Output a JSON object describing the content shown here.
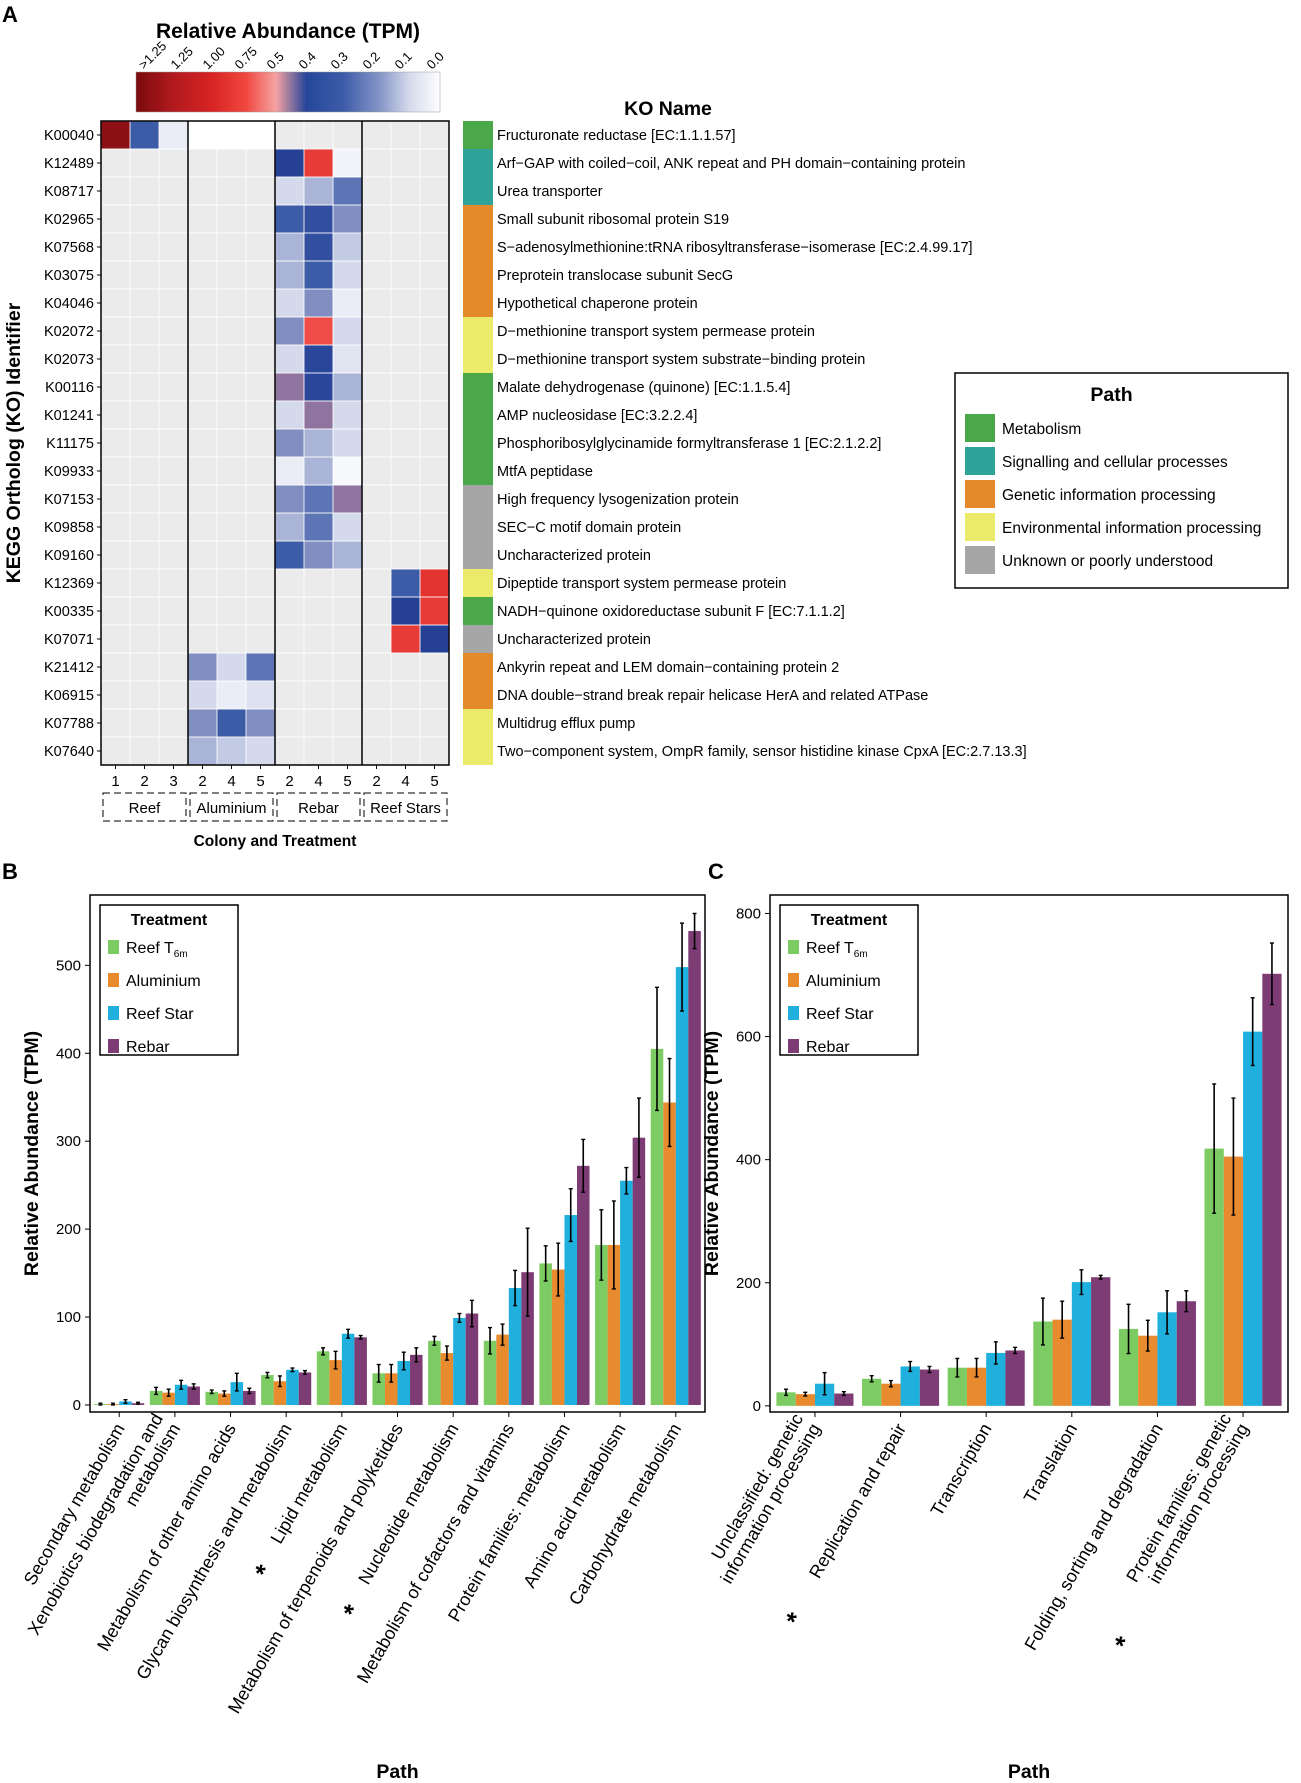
{
  "panels": {
    "a": "A",
    "b": "B",
    "c": "C"
  },
  "chart_data": [
    {
      "type": "heatmap",
      "panel": "A",
      "colorbar": {
        "title": "Relative Abundance (TPM)",
        "ticks": [
          ">1.25",
          "1.25",
          "1.00",
          "0.75",
          "0.5",
          "0.4",
          "0.3",
          "0.2",
          "0.1",
          "0.0"
        ],
        "tick_values": [
          1.4,
          1.25,
          1.0,
          0.75,
          0.5,
          0.4,
          0.3,
          0.2,
          0.1,
          0.0
        ]
      },
      "ylabel": "KEGG Ortholog (KO) Identifier",
      "xlabel": "Colony and Treatment",
      "ko_name_header": "KO Name",
      "groups": [
        {
          "label": "Reef",
          "columns": [
            "1",
            "2",
            "3"
          ]
        },
        {
          "label": "Aluminium",
          "columns": [
            "2",
            "4",
            "5"
          ]
        },
        {
          "label": "Rebar",
          "columns": [
            "2",
            "4",
            "5"
          ]
        },
        {
          "label": "Reef Stars",
          "columns": [
            "2",
            "4",
            "5"
          ]
        }
      ],
      "rows": [
        {
          "id": "K00040",
          "name": "Fructuronate reductase [EC:1.1.1.57]",
          "path": "Metabolism",
          "values": [
            1.4,
            0.3,
            0.05,
            0,
            0,
            0,
            null,
            null,
            null,
            null,
            null,
            null
          ]
        },
        {
          "id": "K12489",
          "name": "Arf−GAP with coiled−coil, ANK repeat and PH domain−containing protein",
          "path": "Signalling and cellular processes",
          "values": [
            null,
            null,
            null,
            null,
            null,
            null,
            0.4,
            0.85,
            0.03,
            null,
            null,
            null
          ]
        },
        {
          "id": "K08717",
          "name": "Urea transporter",
          "path": "Signalling and cellular processes",
          "values": [
            null,
            null,
            null,
            null,
            null,
            null,
            0.1,
            0.15,
            0.25,
            null,
            null,
            null
          ]
        },
        {
          "id": "K02965",
          "name": "Small subunit ribosomal protein S19",
          "path": "Genetic information processing",
          "values": [
            null,
            null,
            null,
            null,
            null,
            null,
            0.3,
            0.35,
            0.2,
            null,
            null,
            null
          ]
        },
        {
          "id": "K07568",
          "name": "S−adenosylmethionine:tRNA ribosyltransferase−isomerase [EC:2.4.99.17]",
          "path": "Genetic information processing",
          "values": [
            null,
            null,
            null,
            null,
            null,
            null,
            0.15,
            0.35,
            0.12,
            null,
            null,
            null
          ]
        },
        {
          "id": "K03075",
          "name": "Preprotein translocase subunit SecG",
          "path": "Genetic information processing",
          "values": [
            null,
            null,
            null,
            null,
            null,
            null,
            0.15,
            0.3,
            0.1,
            null,
            null,
            null
          ]
        },
        {
          "id": "K04046",
          "name": "Hypothetical chaperone protein",
          "path": "Genetic information processing",
          "values": [
            null,
            null,
            null,
            null,
            null,
            null,
            0.1,
            0.2,
            0.05,
            null,
            null,
            null
          ]
        },
        {
          "id": "K02072",
          "name": "D−methionine transport system permease protein",
          "path": "Environmental information processing",
          "values": [
            null,
            null,
            null,
            null,
            null,
            null,
            0.2,
            0.75,
            0.1,
            null,
            null,
            null
          ]
        },
        {
          "id": "K02073",
          "name": "D−methionine transport system substrate−binding protein",
          "path": "Environmental information processing",
          "values": [
            null,
            null,
            null,
            null,
            null,
            null,
            0.1,
            0.38,
            0.07,
            null,
            null,
            null
          ]
        },
        {
          "id": "K00116",
          "name": "Malate dehydrogenase (quinone) [EC:1.1.5.4]",
          "path": "Metabolism",
          "values": [
            null,
            null,
            null,
            null,
            null,
            null,
            0.45,
            0.38,
            0.15,
            null,
            null,
            null
          ]
        },
        {
          "id": "K01241",
          "name": "AMP nucleosidase [EC:3.2.2.4]",
          "path": "Metabolism",
          "values": [
            null,
            null,
            null,
            null,
            null,
            null,
            0.1,
            0.45,
            0.1,
            null,
            null,
            null
          ]
        },
        {
          "id": "K11175",
          "name": "Phosphoribosylglycinamide formyltransferase 1 [EC:2.1.2.2]",
          "path": "Metabolism",
          "values": [
            null,
            null,
            null,
            null,
            null,
            null,
            0.2,
            0.15,
            0.1,
            null,
            null,
            null
          ]
        },
        {
          "id": "K09933",
          "name": "MtfA peptidase",
          "path": "Metabolism",
          "values": [
            null,
            null,
            null,
            null,
            null,
            null,
            0.05,
            0.15,
            0.02,
            null,
            null,
            null
          ]
        },
        {
          "id": "K07153",
          "name": "High frequency lysogenization protein",
          "path": "Unknown or poorly understood",
          "values": [
            null,
            null,
            null,
            null,
            null,
            null,
            0.2,
            0.25,
            0.45,
            null,
            null,
            null
          ]
        },
        {
          "id": "K09858",
          "name": "SEC−C motif domain protein",
          "path": "Unknown or poorly understood",
          "values": [
            null,
            null,
            null,
            null,
            null,
            null,
            0.15,
            0.25,
            0.1,
            null,
            null,
            null
          ]
        },
        {
          "id": "K09160",
          "name": "Uncharacterized protein",
          "path": "Unknown or poorly understood",
          "values": [
            null,
            null,
            null,
            null,
            null,
            null,
            0.3,
            0.2,
            0.15,
            null,
            null,
            null
          ]
        },
        {
          "id": "K12369",
          "name": "Dipeptide transport system permease protein",
          "path": "Environmental information processing",
          "values": [
            null,
            null,
            null,
            null,
            null,
            null,
            null,
            null,
            null,
            null,
            0.3,
            0.9
          ]
        },
        {
          "id": "K00335",
          "name": "NADH−quinone oxidoreductase subunit F [EC:7.1.1.2]",
          "path": "Metabolism",
          "values": [
            null,
            null,
            null,
            null,
            null,
            null,
            null,
            null,
            null,
            null,
            0.4,
            0.85
          ]
        },
        {
          "id": "K07071",
          "name": "Uncharacterized protein",
          "path": "Unknown or poorly understood",
          "values": [
            null,
            null,
            null,
            null,
            null,
            null,
            null,
            null,
            null,
            null,
            0.85,
            0.4
          ]
        },
        {
          "id": "K21412",
          "name": "Ankyrin repeat and LEM domain−containing protein 2",
          "path": "Genetic information processing",
          "values": [
            null,
            null,
            null,
            0.2,
            0.1,
            0.25,
            null,
            null,
            null,
            null,
            null,
            null
          ]
        },
        {
          "id": "K06915",
          "name": "DNA double−strand break repair helicase HerA and related ATPase",
          "path": "Genetic information processing",
          "values": [
            null,
            null,
            null,
            0.1,
            0.05,
            0.08,
            null,
            null,
            null,
            null,
            null,
            null
          ]
        },
        {
          "id": "K07788",
          "name": "Multidrug efflux pump",
          "path": "Environmental information processing",
          "values": [
            null,
            null,
            null,
            0.2,
            0.3,
            0.2,
            null,
            null,
            null,
            null,
            null,
            null
          ]
        },
        {
          "id": "K07640",
          "name": "Two−component system, OmpR family, sensor histidine kinase CpxA [EC:2.7.13.3]",
          "path": "Environmental information processing",
          "values": [
            null,
            null,
            null,
            0.15,
            0.12,
            0.1,
            null,
            null,
            null,
            null,
            null,
            null
          ]
        }
      ],
      "legend": {
        "title": "Path",
        "items": [
          {
            "label": "Metabolism",
            "color": "#4aa84a"
          },
          {
            "label": "Signalling and cellular processes",
            "color": "#2fa399"
          },
          {
            "label": "Genetic information processing",
            "color": "#e58a2a"
          },
          {
            "label": "Environmental information processing",
            "color": "#ecea6a"
          },
          {
            "label": "Unknown or poorly understood",
            "color": "#a6a6a6"
          }
        ]
      }
    },
    {
      "type": "bar",
      "panel": "B",
      "xlabel": "Path",
      "ylabel": "Relative Abundance (TPM)",
      "ylim": [
        -8,
        580
      ],
      "yticks": [
        0,
        100,
        200,
        300,
        400,
        500
      ],
      "legend": {
        "title": "Treatment"
      },
      "categories": [
        {
          "label": "Secondary metabolism",
          "star": ""
        },
        {
          "label": "Xenobiotics biodegradation and\nmetabolism",
          "star": ""
        },
        {
          "label": "Metabolism of other amino acids",
          "star": ""
        },
        {
          "label": "Glycan biosynthesis and metabolism",
          "star": ""
        },
        {
          "label": "Lipid metabolism",
          "star": "*"
        },
        {
          "label": "Metabolism of terpenoids and polyketides",
          "star": ""
        },
        {
          "label": "Nucleotide metabolism",
          "star": "*"
        },
        {
          "label": "Metabolism of cofactors and vitamins",
          "star": ""
        },
        {
          "label": "Protein families: metabolism",
          "star": ""
        },
        {
          "label": "Amino acid metabolism",
          "star": ""
        },
        {
          "label": "Carbohydrate metabolism",
          "star": ""
        }
      ],
      "series": [
        {
          "name": "Reef T",
          "sub": "6m",
          "color": "#7ccc63",
          "values": [
            1,
            16,
            15,
            34,
            61,
            36,
            73,
            73,
            161,
            182,
            405
          ],
          "errors": [
            1,
            4,
            2,
            3,
            4,
            10,
            5,
            15,
            20,
            40,
            70
          ]
        },
        {
          "name": "Aluminium",
          "sub": "",
          "color": "#e88a2e",
          "values": [
            1,
            14,
            13,
            27,
            51,
            36,
            59,
            80,
            154,
            182,
            344
          ],
          "errors": [
            1,
            4,
            3,
            6,
            10,
            10,
            8,
            12,
            30,
            50,
            50
          ]
        },
        {
          "name": "Reef Star",
          "sub": "",
          "color": "#1fb0dd",
          "values": [
            4,
            23,
            26,
            40,
            81,
            50,
            99,
            133,
            216,
            255,
            498
          ],
          "errors": [
            2,
            5,
            10,
            2,
            5,
            10,
            5,
            20,
            30,
            15,
            50
          ]
        },
        {
          "name": "Rebar",
          "sub": "",
          "color": "#7d3c74",
          "values": [
            2,
            21,
            16,
            37,
            77,
            57,
            104,
            151,
            272,
            304,
            539
          ],
          "errors": [
            1,
            3,
            3,
            2,
            2,
            8,
            15,
            50,
            30,
            45,
            20
          ]
        }
      ]
    },
    {
      "type": "bar",
      "panel": "C",
      "xlabel": "Path",
      "ylabel": "Relative Abundance (TPM)",
      "ylim": [
        -10,
        830
      ],
      "yticks": [
        0,
        200,
        400,
        600,
        800
      ],
      "legend": {
        "title": "Treatment"
      },
      "categories": [
        {
          "label": "Unclassified: genetic\ninformation processing",
          "star": ""
        },
        {
          "label": "Replication and repair",
          "star": "*"
        },
        {
          "label": "Transcription",
          "star": ""
        },
        {
          "label": "Translation",
          "star": ""
        },
        {
          "label": "Folding, sorting and degradation",
          "star": ""
        },
        {
          "label": "Protein families: genetic\ninformation processing",
          "star": "*"
        }
      ],
      "series": [
        {
          "name": "Reef T",
          "sub": "6m",
          "color": "#7ccc63",
          "values": [
            22,
            44,
            62,
            137,
            125,
            418
          ],
          "errors": [
            5,
            5,
            15,
            38,
            40,
            105
          ]
        },
        {
          "name": "Aluminium",
          "sub": "",
          "color": "#e88a2e",
          "values": [
            19,
            36,
            62,
            140,
            114,
            405
          ],
          "errors": [
            3,
            5,
            15,
            30,
            25,
            95
          ]
        },
        {
          "name": "Reef Star",
          "sub": "",
          "color": "#1fb0dd",
          "values": [
            36,
            64,
            86,
            201,
            152,
            608
          ],
          "errors": [
            18,
            8,
            18,
            20,
            35,
            55
          ]
        },
        {
          "name": "Rebar",
          "sub": "",
          "color": "#7d3c74",
          "values": [
            20,
            59,
            90,
            209,
            170,
            702
          ],
          "errors": [
            3,
            5,
            5,
            3,
            17,
            50
          ]
        }
      ]
    }
  ]
}
